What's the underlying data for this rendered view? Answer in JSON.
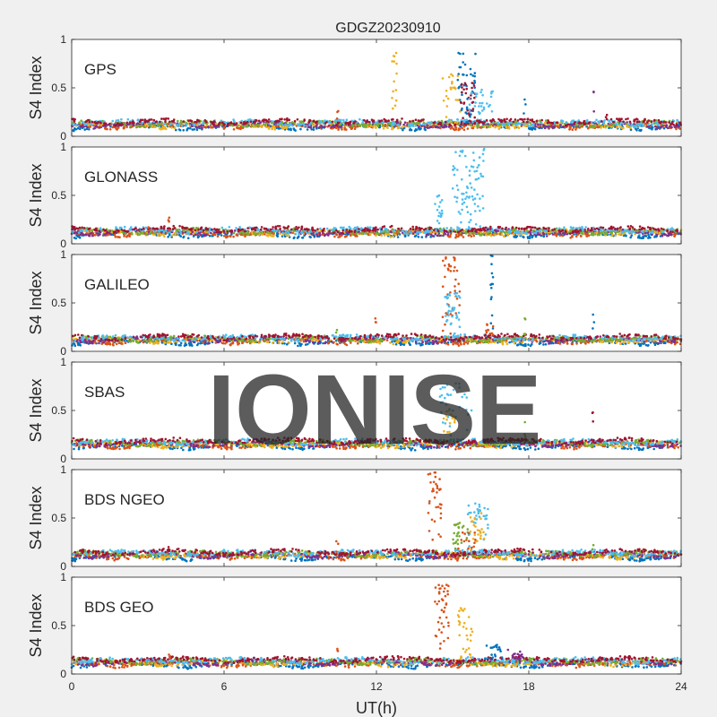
{
  "chart_data": {
    "type": "scatter",
    "title": "GDGZ20230910",
    "xlabel": "UT(h)",
    "ylabel": "S4 Index",
    "xlim": [
      0,
      24
    ],
    "ylim": [
      0,
      1
    ],
    "xticks": [
      "0",
      "6",
      "12",
      "18",
      "24"
    ],
    "yticks": [
      "0",
      "0.5",
      "1"
    ],
    "watermark": "IONISE",
    "colors": [
      "#0072BD",
      "#D95319",
      "#EDB120",
      "#7E2F8E",
      "#77AC30",
      "#4DBEEE",
      "#A2142F"
    ],
    "panels": [
      {
        "label": "GPS",
        "bursts": [
          {
            "x": [
              15.2,
              15.9
            ],
            "peak": 0.86,
            "color": "#0072BD",
            "n": 45
          },
          {
            "x": [
              15.3,
              15.9
            ],
            "peak": 0.55,
            "color": "#A2142F",
            "n": 30
          },
          {
            "x": [
              14.6,
              15.3
            ],
            "peak": 0.64,
            "color": "#EDB120",
            "n": 25
          },
          {
            "x": [
              15.6,
              16.6
            ],
            "peak": 0.48,
            "color": "#4DBEEE",
            "n": 35
          },
          {
            "x": [
              12.6,
              12.8
            ],
            "peak": 0.86,
            "color": "#EDB120",
            "n": 14
          },
          {
            "x": [
              10.4,
              10.5
            ],
            "peak": 0.26,
            "color": "#D95319",
            "n": 3
          },
          {
            "x": [
              17.8,
              17.9
            ],
            "peak": 0.38,
            "color": "#0072BD",
            "n": 3
          },
          {
            "x": [
              20.5,
              20.6
            ],
            "peak": 0.46,
            "color": "#7E2F8E",
            "n": 3
          },
          {
            "x": [
              21.0,
              21.1
            ],
            "peak": 0.22,
            "color": "#A2142F",
            "n": 2
          }
        ]
      },
      {
        "label": "GLONASS",
        "bursts": [
          {
            "x": [
              15.0,
              16.3
            ],
            "peak": 0.98,
            "color": "#4DBEEE",
            "n": 80
          },
          {
            "x": [
              14.3,
              14.6
            ],
            "peak": 0.5,
            "color": "#4DBEEE",
            "n": 18
          },
          {
            "x": [
              3.0,
              3.1
            ],
            "peak": 0.17,
            "color": "#D95319",
            "n": 3
          },
          {
            "x": [
              3.8,
              3.9
            ],
            "peak": 0.27,
            "color": "#D95319",
            "n": 4
          }
        ]
      },
      {
        "label": "GALILEO",
        "bursts": [
          {
            "x": [
              14.6,
              15.3
            ],
            "peak": 0.97,
            "color": "#D95319",
            "n": 40
          },
          {
            "x": [
              14.7,
              15.3
            ],
            "peak": 0.6,
            "color": "#4DBEEE",
            "n": 35
          },
          {
            "x": [
              16.5,
              16.6
            ],
            "peak": 0.99,
            "color": "#0072BD",
            "n": 14
          },
          {
            "x": [
              16.3,
              16.6
            ],
            "peak": 0.28,
            "color": "#D95319",
            "n": 10
          },
          {
            "x": [
              17.8,
              17.9
            ],
            "peak": 0.34,
            "color": "#77AC30",
            "n": 4
          },
          {
            "x": [
              11.9,
              12.0
            ],
            "peak": 0.34,
            "color": "#D95319",
            "n": 3
          },
          {
            "x": [
              10.4,
              10.5
            ],
            "peak": 0.22,
            "color": "#77AC30",
            "n": 2
          },
          {
            "x": [
              20.5,
              20.6
            ],
            "peak": 0.38,
            "color": "#0072BD",
            "n": 3
          }
        ]
      },
      {
        "label": "SBAS",
        "bursts": [
          {
            "x": [
              14.5,
              15.8
            ],
            "peak": 0.78,
            "color": "#4DBEEE",
            "n": 35
          },
          {
            "x": [
              14.6,
              15.1
            ],
            "peak": 0.5,
            "color": "#EDB120",
            "n": 15
          },
          {
            "x": [
              17.8,
              17.9
            ],
            "peak": 0.38,
            "color": "#77AC30",
            "n": 3
          },
          {
            "x": [
              20.5,
              20.6
            ],
            "peak": 0.48,
            "color": "#A2142F",
            "n": 3
          }
        ]
      },
      {
        "label": "BDS NGEO",
        "bursts": [
          {
            "x": [
              14.0,
              14.6
            ],
            "peak": 0.97,
            "color": "#D95319",
            "n": 35
          },
          {
            "x": [
              15.0,
              15.6
            ],
            "peak": 0.45,
            "color": "#77AC30",
            "n": 25
          },
          {
            "x": [
              15.6,
              16.4
            ],
            "peak": 0.65,
            "color": "#4DBEEE",
            "n": 40
          },
          {
            "x": [
              15.7,
              16.3
            ],
            "peak": 0.55,
            "color": "#EDB120",
            "n": 25
          },
          {
            "x": [
              15.2,
              15.9
            ],
            "peak": 0.35,
            "color": "#D95319",
            "n": 15
          },
          {
            "x": [
              3.8,
              3.9
            ],
            "peak": 0.2,
            "color": "#A2142F",
            "n": 3
          },
          {
            "x": [
              10.4,
              10.5
            ],
            "peak": 0.26,
            "color": "#D95319",
            "n": 3
          },
          {
            "x": [
              20.5,
              20.6
            ],
            "peak": 0.22,
            "color": "#77AC30",
            "n": 2
          }
        ]
      },
      {
        "label": "BDS GEO",
        "bursts": [
          {
            "x": [
              14.3,
              14.9
            ],
            "peak": 0.92,
            "color": "#D95319",
            "n": 40
          },
          {
            "x": [
              15.2,
              15.8
            ],
            "peak": 0.68,
            "color": "#EDB120",
            "n": 30
          },
          {
            "x": [
              16.2,
              17.0
            ],
            "peak": 0.3,
            "color": "#0072BD",
            "n": 18
          },
          {
            "x": [
              17.0,
              17.8
            ],
            "peak": 0.25,
            "color": "#7E2F8E",
            "n": 18
          },
          {
            "x": [
              3.8,
              3.9
            ],
            "peak": 0.2,
            "color": "#D95319",
            "n": 3
          },
          {
            "x": [
              10.4,
              10.5
            ],
            "peak": 0.26,
            "color": "#D95319",
            "n": 3
          }
        ]
      }
    ]
  }
}
